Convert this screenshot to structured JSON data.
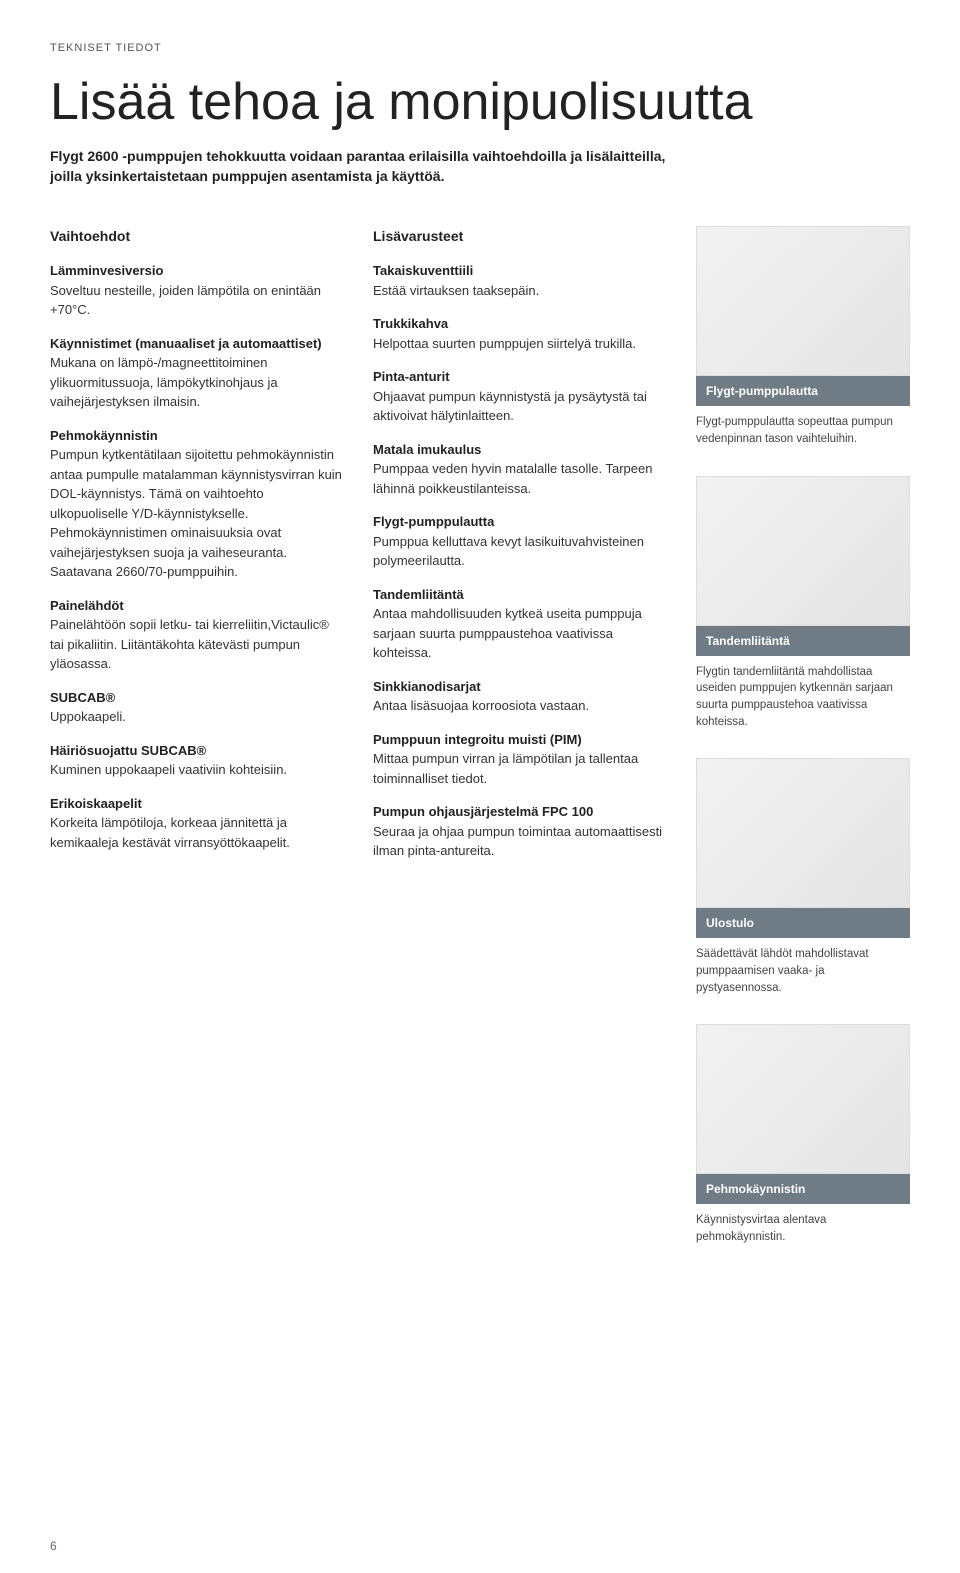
{
  "overline": "TEKNISET TIEDOT",
  "title": "Lisää tehoa ja monipuolisuutta",
  "lead": "Flygt 2600 -pumppujen tehokkuutta voidaan parantaa erilaisilla vaihtoehdoilla ja lisälaitteilla, joilla yksinkertaistetaan pumppujen asentamista ja käyttöä.",
  "left": {
    "heading": "Vaihtoehdot",
    "items": [
      {
        "title": "Lämminvesiversio",
        "body": "Soveltuu nesteille, joiden lämpötila on enintään +70°C."
      },
      {
        "title": "Käynnistimet (manuaaliset ja automaattiset)",
        "body": "Mukana on lämpö-/magneettitoiminen ylikuormitussuoja, lämpökytkinohjaus ja vaihejärjestyksen ilmaisin."
      },
      {
        "title": "Pehmokäynnistin",
        "body": "Pumpun kytkentätilaan sijoitettu pehmokäynnistin antaa pumpulle matalamman käynnistysvirran kuin DOL-käynnistys. Tämä on vaihtoehto ulkopuoliselle Y/D-käynnistykselle. Pehmokäynnistimen ominaisuuksia ovat vaihejärjestyksen suoja ja vaiheseuranta. Saatavana 2660/70-pumppuihin."
      },
      {
        "title": "Painelähdöt",
        "body": "Painelähtöön sopii letku- tai kierreliitin,Victaulic® tai pikaliitin. Liitäntäkohta kätevästi pumpun yläosassa."
      },
      {
        "title": "SUBCAB®",
        "body": "Uppokaapeli."
      },
      {
        "title": "Häiriösuojattu SUBCAB®",
        "body": "Kuminen uppokaapeli vaativiin kohteisiin."
      },
      {
        "title": "Erikoiskaapelit",
        "body": "Korkeita lämpötiloja, korkeaa jännitettä ja kemikaaleja kestävät virransyöttökaapelit."
      }
    ]
  },
  "mid": {
    "heading": "Lisävarusteet",
    "items": [
      {
        "title": "Takaiskuventtiili",
        "body": "Estää virtauksen taaksepäin."
      },
      {
        "title": "Trukkikahva",
        "body": "Helpottaa suurten pumppujen siirtelyä trukilla."
      },
      {
        "title": "Pinta-anturit",
        "body": "Ohjaavat pumpun käynnistystä ja pysäytystä tai aktivoivat hälytinlaitteen."
      },
      {
        "title": "Matala imukaulus",
        "body": "Pumppaa veden hyvin matalalle tasolle. Tarpeen lähinnä poikkeustilanteissa."
      },
      {
        "title": "Flygt-pumppulautta",
        "body": "Pumppua kelluttava kevyt lasikuituvahvisteinen polymeerilautta."
      },
      {
        "title": "Tandemliitäntä",
        "body": "Antaa mahdollisuuden kytkeä useita pumppuja sarjaan suurta pumppaustehoa vaativissa kohteissa."
      },
      {
        "title": "Sinkkianodisarjat",
        "body": "Antaa lisäsuojaa korroosiota vastaan."
      },
      {
        "title": "Pumppuun integroitu muisti (PIM)",
        "body": "Mittaa pumpun virran  ja lämpötilan ja tallentaa toiminnalliset tiedot."
      },
      {
        "title": "Pumpun ohjausjärjestelmä FPC 100",
        "body": "Seuraa ja ohjaa pumpun toimintaa automaattisesti ilman pinta-antureita."
      }
    ]
  },
  "right": {
    "figures": [
      {
        "caption_title": "Flygt-pumppulautta",
        "caption_body": "Flygt-pumppulautta sopeuttaa pumpun vedenpinnan tason vaihteluihin."
      },
      {
        "caption_title": "Tandemliitäntä",
        "caption_body": "Flygtin tandemliitäntä mahdollistaa useiden pumppujen kytkennän sarjaan suurta pumppaustehoa vaativissa kohteissa."
      },
      {
        "caption_title": "Ulostulo",
        "caption_body": "Säädettävät lähdöt mahdollistavat pumppaamisen vaaka- ja pystyasennossa."
      },
      {
        "caption_title": "Pehmokäynnistin",
        "caption_body": "Käynnistysvirtaa alentava pehmokäynnistin."
      }
    ]
  },
  "page_number": "6",
  "colors": {
    "caption_bar_bg": "#6f7b85",
    "caption_bar_text": "#ffffff",
    "text": "#333333",
    "heading": "#222222",
    "page_bg": "#ffffff"
  }
}
